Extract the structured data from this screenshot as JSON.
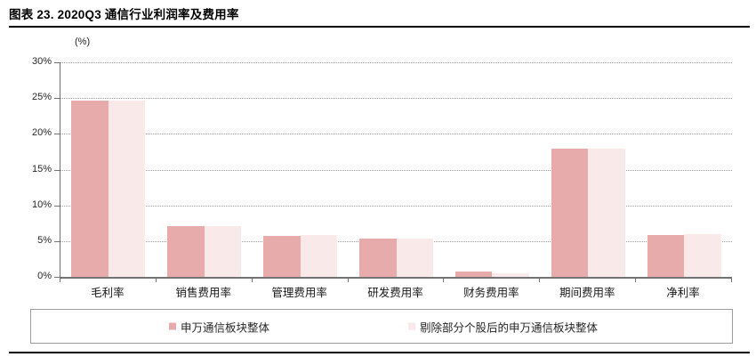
{
  "figure": {
    "title": "图表 23. 2020Q3 通信行业利润率及费用率"
  },
  "chart_data": {
    "type": "bar",
    "title": "2020Q3 通信行业利润率及费用率",
    "unit_label": "(%)",
    "categories": [
      "毛利率",
      "销售费用率",
      "管理费用率",
      "研发费用率",
      "财务费用率",
      "期间费用率",
      "净利率"
    ],
    "series": [
      {
        "name": "申万通信板块整体",
        "color": "#e7abab",
        "values": [
          24.7,
          7.1,
          5.7,
          5.3,
          0.8,
          17.9,
          5.9
        ]
      },
      {
        "name": "剔除部分个股后的申万通信板块整体",
        "color": "#fae9e9",
        "values": [
          24.7,
          7.1,
          5.9,
          5.3,
          0.5,
          17.9,
          6.0
        ]
      }
    ],
    "xlabel": "",
    "ylabel": "(%)",
    "y_axis": {
      "min": 0,
      "max": 30,
      "step": 5,
      "tick_labels": [
        "0%",
        "5%",
        "10%",
        "15%",
        "20%",
        "25%",
        "30%"
      ]
    },
    "grid": "horizontal-dotted",
    "legend_position": "bottom-box"
  }
}
